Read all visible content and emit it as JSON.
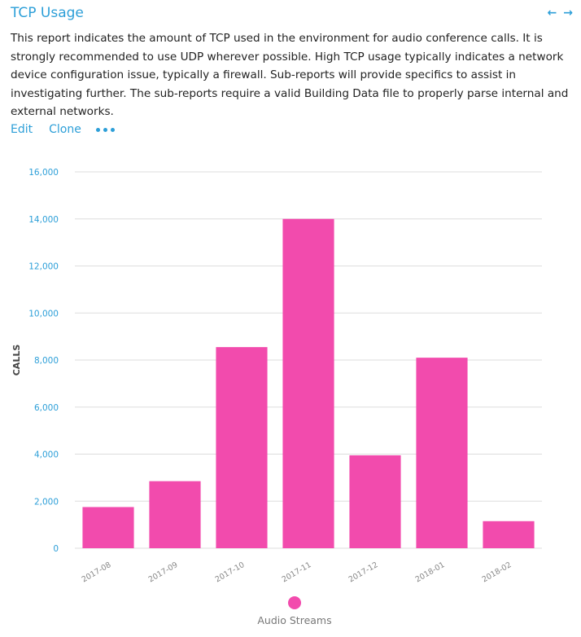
{
  "header": {
    "title": "TCP Usage",
    "prev_icon": "arrow-left-icon",
    "next_icon": "arrow-right-icon",
    "prev_glyph": "←",
    "next_glyph": "→"
  },
  "description": "This report indicates the amount of TCP used in the environment for audio conference calls. It is strongly recommended to use UDP wherever possible. High TCP usage typically indicates a network device configuration issue, typically a firewall. Sub-reports will provide specifics to assist in investigating further. The sub-reports require a valid Building Data file to properly parse internal and external networks.",
  "actions": {
    "edit": "Edit",
    "clone": "Clone",
    "more_icon": "more-dots-icon"
  },
  "colors": {
    "accent": "#2d9fd8",
    "bar": "#f24bad",
    "grid": "#dddddd"
  },
  "chart_data": {
    "type": "bar",
    "categories": [
      "2017-08",
      "2017-09",
      "2017-10",
      "2017-11",
      "2017-12",
      "2018-01",
      "2018-02"
    ],
    "series": [
      {
        "name": "Audio Streams",
        "values": [
          1750,
          2850,
          8550,
          14000,
          3950,
          8100,
          1150
        ]
      }
    ],
    "ylabel": "CALLS",
    "ylim": [
      0,
      16000
    ],
    "yticks": [
      0,
      2000,
      4000,
      6000,
      8000,
      10000,
      12000,
      14000,
      16000
    ],
    "ytick_labels": [
      "0",
      "2,000",
      "4,000",
      "6,000",
      "8,000",
      "10,000",
      "12,000",
      "14,000",
      "16,000"
    ],
    "grid": true,
    "legend": "bottom-center"
  }
}
